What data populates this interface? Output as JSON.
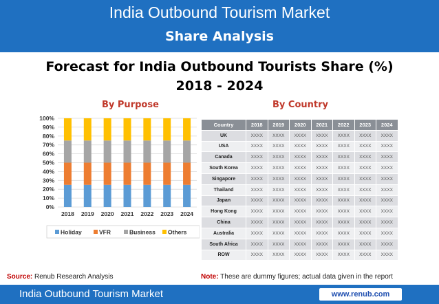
{
  "header": {
    "title": "India Outbound Tourism Market",
    "subtitle": "Share Analysis"
  },
  "headline": {
    "line1": "Forecast for India Outbound Tourists Share (%)",
    "line2": "2018 - 2024"
  },
  "colors": {
    "header_bg": "#1f70c1",
    "holiday": "#5b9bd5",
    "vfr": "#ed7d31",
    "business": "#a5a5a5",
    "others": "#ffc000",
    "subtitle_red": "#c0392b"
  },
  "chart_data": [
    {
      "type": "bar",
      "stacked": true,
      "title": "By Purpose",
      "categories": [
        "2018",
        "2019",
        "2020",
        "2021",
        "2022",
        "2023",
        "2024"
      ],
      "y_ticks": [
        "0%",
        "10%",
        "20%",
        "30%",
        "40%",
        "50%",
        "60%",
        "70%",
        "80%",
        "90%",
        "100%"
      ],
      "ylim": [
        0,
        100
      ],
      "grid": true,
      "legend_position": "bottom",
      "series": [
        {
          "name": "Holiday",
          "values": [
            25,
            25,
            25,
            25,
            25,
            25,
            25
          ]
        },
        {
          "name": "VFR",
          "values": [
            25,
            25,
            25,
            25,
            25,
            25,
            25
          ]
        },
        {
          "name": "Business",
          "values": [
            25,
            25,
            25,
            25,
            25,
            25,
            25
          ]
        },
        {
          "name": "Others",
          "values": [
            25,
            25,
            25,
            25,
            25,
            25,
            25
          ]
        }
      ]
    },
    {
      "type": "table",
      "title": "By Country",
      "columns": [
        "Country",
        "2018",
        "2019",
        "2020",
        "2021",
        "2022",
        "2023",
        "2024"
      ],
      "rows": [
        [
          "UK",
          "XXXX",
          "XXXX",
          "XXXX",
          "XXXX",
          "XXXX",
          "XXXX",
          "XXXX"
        ],
        [
          "USA",
          "XXXX",
          "XXXX",
          "XXXX",
          "XXXX",
          "XXXX",
          "XXXX",
          "XXXX"
        ],
        [
          "Canada",
          "XXXX",
          "XXXX",
          "XXXX",
          "XXXX",
          "XXXX",
          "XXXX",
          "XXXX"
        ],
        [
          "South Korea",
          "XXXX",
          "XXXX",
          "XXXX",
          "XXXX",
          "XXXX",
          "XXXX",
          "XXXX"
        ],
        [
          "Singapore",
          "XXXX",
          "XXXX",
          "XXXX",
          "XXXX",
          "XXXX",
          "XXXX",
          "XXXX"
        ],
        [
          "Thailand",
          "XXXX",
          "XXXX",
          "XXXX",
          "XXXX",
          "XXXX",
          "XXXX",
          "XXXX"
        ],
        [
          "Japan",
          "XXXX",
          "XXXX",
          "XXXX",
          "XXXX",
          "XXXX",
          "XXXX",
          "XXXX"
        ],
        [
          "Hong Kong",
          "XXXX",
          "XXXX",
          "XXXX",
          "XXXX",
          "XXXX",
          "XXXX",
          "XXXX"
        ],
        [
          "China",
          "XXXX",
          "XXXX",
          "XXXX",
          "XXXX",
          "XXXX",
          "XXXX",
          "XXXX"
        ],
        [
          "Australia",
          "XXXX",
          "XXXX",
          "XXXX",
          "XXXX",
          "XXXX",
          "XXXX",
          "XXXX"
        ],
        [
          "South Africa",
          "XXXX",
          "XXXX",
          "XXXX",
          "XXXX",
          "XXXX",
          "XXXX",
          "XXXX"
        ],
        [
          "ROW",
          "XXXX",
          "XXXX",
          "XXXX",
          "XXXX",
          "XXXX",
          "XXXX",
          "XXXX"
        ]
      ]
    }
  ],
  "source": {
    "label": "Source:",
    "text": "Renub Research Analysis"
  },
  "note": {
    "label": "Note:",
    "text": "These are dummy figures; actual data given in the report"
  },
  "footer": {
    "title": "India Outbound Tourism Market",
    "url": "www.renub.com"
  }
}
